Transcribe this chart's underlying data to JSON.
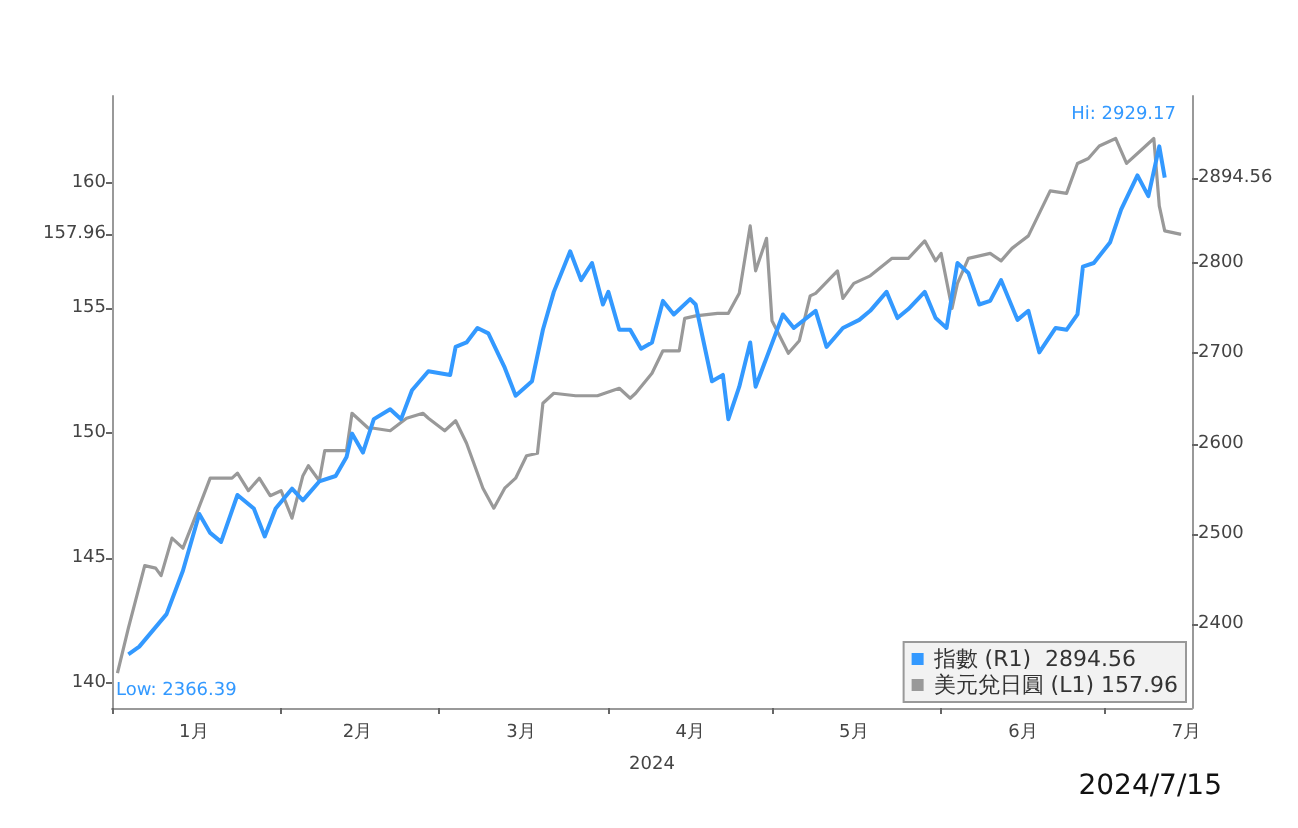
{
  "chart_data": {
    "type": "line",
    "xlabel": "2024",
    "xlim": [
      "2024-01-01",
      "2024-07-17"
    ],
    "xticks": [
      {
        "value": "2024-01-01",
        "label": null
      },
      {
        "value": "2024-01-16",
        "label": "1月"
      },
      {
        "value": "2024-02-01",
        "label": null
      },
      {
        "value": "2024-02-15",
        "label": "2月"
      },
      {
        "value": "2024-03-01",
        "label": null
      },
      {
        "value": "2024-03-16",
        "label": "3月"
      },
      {
        "value": "2024-04-01",
        "label": null
      },
      {
        "value": "2024-04-16",
        "label": "4月"
      },
      {
        "value": "2024-05-01",
        "label": null
      },
      {
        "value": "2024-05-16",
        "label": "5月"
      },
      {
        "value": "2024-06-01",
        "label": null
      },
      {
        "value": "2024-06-16",
        "label": "6月"
      },
      {
        "value": "2024-07-01",
        "label": null
      },
      {
        "value": "2024-07-16",
        "label": "7月"
      }
    ],
    "ylim": [
      139,
      163.5
    ],
    "yticks": [
      140,
      145,
      150,
      155,
      {
        "value": 157.96,
        "label": "157.96"
      },
      160
    ],
    "y2lim": [
      2307,
      2985
    ],
    "y2ticks": [
      2400,
      2500,
      2600,
      2700,
      2800,
      {
        "value": 2894.56,
        "label": "2894.56"
      }
    ],
    "grid": false,
    "legend": "bottom right",
    "marker": "none",
    "line_style": "solid",
    "annotations": [
      "Low: 2366.39",
      "Hi: 2929.17",
      "2024/7/15"
    ],
    "series": [
      {
        "name": "指數 (R1)  2894.56",
        "color": "#3399ff",
        "axis": "y2",
        "x": [
          "2024-01-04",
          "2024-01-06",
          "2024-01-11",
          "2024-01-14",
          "2024-01-17",
          "2024-01-19",
          "2024-01-21",
          "2024-01-24",
          "2024-01-27",
          "2024-01-29",
          "2024-01-31",
          "2024-02-03",
          "2024-02-05",
          "2024-02-08",
          "2024-02-11",
          "2024-02-13",
          "2024-02-14",
          "2024-02-16",
          "2024-02-18",
          "2024-02-21",
          "2024-02-23",
          "2024-02-25",
          "2024-02-28",
          "2024-03-03",
          "2024-03-04",
          "2024-03-06",
          "2024-03-08",
          "2024-03-10",
          "2024-03-13",
          "2024-03-15",
          "2024-03-18",
          "2024-03-20",
          "2024-03-22",
          "2024-03-25",
          "2024-03-27",
          "2024-03-29",
          "2024-03-31",
          "2024-04-01",
          "2024-04-03",
          "2024-04-05",
          "2024-04-07",
          "2024-04-09",
          "2024-04-11",
          "2024-04-13",
          "2024-04-16",
          "2024-04-17",
          "2024-04-20",
          "2024-04-22",
          "2024-04-23",
          "2024-04-25",
          "2024-04-27",
          "2024-04-28",
          "2024-05-03",
          "2024-05-05",
          "2024-05-09",
          "2024-05-11",
          "2024-05-14",
          "2024-05-17",
          "2024-05-19",
          "2024-05-22",
          "2024-05-24",
          "2024-05-26",
          "2024-05-29",
          "2024-05-31",
          "2024-06-02",
          "2024-06-04",
          "2024-06-06",
          "2024-06-08",
          "2024-06-10",
          "2024-06-12",
          "2024-06-15",
          "2024-06-17",
          "2024-06-19",
          "2024-06-22",
          "2024-06-24",
          "2024-06-26",
          "2024-06-27",
          "2024-06-29",
          "2024-07-02",
          "2024-07-04",
          "2024-07-07",
          "2024-07-09",
          "2024-07-11",
          "2024-07-12"
        ],
        "values": [
          2366.39,
          2375,
          2411,
          2459,
          2522,
          2501,
          2491,
          2543,
          2528,
          2497,
          2528,
          2550,
          2537,
          2558,
          2564,
          2585,
          2611,
          2590,
          2627,
          2638,
          2627,
          2659,
          2680,
          2676,
          2707,
          2712,
          2728,
          2722,
          2684,
          2653,
          2669,
          2726,
          2768,
          2813,
          2781,
          2800,
          2754,
          2768,
          2726,
          2726,
          2705,
          2712,
          2758,
          2743,
          2760,
          2754,
          2669,
          2676,
          2627,
          2663,
          2712,
          2663,
          2743,
          2728,
          2747,
          2707,
          2728,
          2737,
          2747,
          2768,
          2739,
          2749,
          2768,
          2739,
          2728,
          2800,
          2789,
          2754,
          2758,
          2781,
          2737,
          2747,
          2701,
          2728,
          2726,
          2743,
          2796,
          2800,
          2823,
          2859,
          2897,
          2874,
          2929.17,
          2894.56
        ]
      },
      {
        "name": "美元兌日圓 (L1) 157.96",
        "color": "#999999",
        "x": [
          "2024-01-02",
          "2024-01-04",
          "2024-01-07",
          "2024-01-09",
          "2024-01-10",
          "2024-01-12",
          "2024-01-14",
          "2024-01-16",
          "2024-01-19",
          "2024-01-23",
          "2024-01-24",
          "2024-01-26",
          "2024-01-28",
          "2024-01-30",
          "2024-02-01",
          "2024-02-03",
          "2024-02-05",
          "2024-02-06",
          "2024-02-08",
          "2024-02-09",
          "2024-02-13",
          "2024-02-14",
          "2024-02-17",
          "2024-02-18",
          "2024-02-21",
          "2024-02-24",
          "2024-02-27",
          "2024-02-28",
          "2024-03-02",
          "2024-03-04",
          "2024-03-06",
          "2024-03-09",
          "2024-03-11",
          "2024-03-13",
          "2024-03-15",
          "2024-03-17",
          "2024-03-19",
          "2024-03-20",
          "2024-03-22",
          "2024-03-26",
          "2024-03-30",
          "2024-04-03",
          "2024-04-05",
          "2024-04-06",
          "2024-04-09",
          "2024-04-11",
          "2024-04-14",
          "2024-04-15",
          "2024-04-17",
          "2024-04-21",
          "2024-04-23",
          "2024-04-25",
          "2024-04-27",
          "2024-04-28",
          "2024-04-30",
          "2024-05-01",
          "2024-05-04",
          "2024-05-06",
          "2024-05-08",
          "2024-05-09",
          "2024-05-13",
          "2024-05-14",
          "2024-05-16",
          "2024-05-19",
          "2024-05-23",
          "2024-05-26",
          "2024-05-29",
          "2024-05-31",
          "2024-06-01",
          "2024-06-03",
          "2024-06-04",
          "2024-06-06",
          "2024-06-10",
          "2024-06-12",
          "2024-06-14",
          "2024-06-17",
          "2024-06-21",
          "2024-06-24",
          "2024-06-26",
          "2024-06-28",
          "2024-06-30",
          "2024-07-03",
          "2024-07-05",
          "2024-07-08",
          "2024-07-10",
          "2024-07-11",
          "2024-07-12",
          "2024-07-15"
        ],
        "values": [
          140.4,
          142.2,
          144.7,
          144.6,
          144.3,
          145.8,
          145.4,
          146.5,
          148.2,
          148.2,
          148.4,
          147.7,
          148.2,
          147.5,
          147.7,
          146.6,
          148.3,
          148.7,
          148.1,
          149.3,
          149.3,
          150.8,
          150.2,
          150.2,
          150.1,
          150.6,
          150.8,
          150.6,
          150.1,
          150.5,
          149.6,
          147.8,
          147.0,
          147.8,
          148.2,
          149.1,
          149.2,
          151.2,
          151.6,
          151.5,
          151.5,
          151.8,
          151.4,
          151.6,
          152.4,
          153.3,
          153.3,
          154.6,
          154.7,
          154.8,
          154.8,
          155.6,
          158.3,
          156.5,
          157.8,
          154.5,
          153.2,
          153.7,
          155.5,
          155.6,
          156.5,
          155.4,
          156.0,
          156.3,
          157.0,
          157.0,
          157.7,
          156.9,
          157.2,
          155.0,
          156.0,
          157.0,
          157.2,
          156.9,
          157.4,
          157.9,
          159.7,
          159.6,
          160.8,
          161.0,
          161.5,
          161.8,
          160.8,
          161.4,
          161.8,
          159.1,
          158.1,
          157.96
        ]
      }
    ]
  }
}
